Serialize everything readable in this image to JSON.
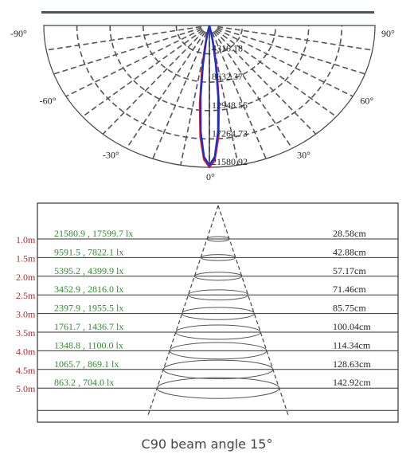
{
  "caption": "C90 beam angle 15°",
  "colors": {
    "curve_c0": "#e0201a",
    "curve_c90": "#1a2ed6",
    "grid": "#555555",
    "illuminance_text": "#2f8a2f",
    "distance_text": "#b03030",
    "diameter_text": "#222222",
    "header_bar": "#4a5560"
  },
  "chart_data": [
    {
      "type": "polar",
      "angle_labels": {
        "left": [
          "-90°",
          "-60°",
          "-30°"
        ],
        "right": [
          "90°",
          "60°",
          "30°"
        ],
        "bottom": "0°"
      },
      "radial_labels": [
        "4316.18",
        "8632.37",
        "12948.55",
        "17264.73",
        "21580.92"
      ],
      "radial_values": [
        4316.18,
        8632.37,
        12948.55,
        17264.73,
        21580.92
      ],
      "rmax": 21580.92,
      "series": [
        {
          "color": "#e0201a",
          "angles": [
            -15,
            -12,
            -10,
            -8,
            -6,
            -4,
            -2,
            0,
            2,
            4,
            6,
            8,
            10,
            12,
            15
          ],
          "values": [
            0,
            1500,
            3500,
            7000,
            12000,
            17000,
            20400,
            21580.92,
            20400,
            17000,
            12000,
            7000,
            3500,
            1500,
            0
          ]
        },
        {
          "color": "#1a2ed6",
          "angles": [
            -15,
            -12,
            -10,
            -8,
            -6,
            -4,
            -2,
            0,
            2,
            4,
            6,
            8,
            10,
            12,
            15
          ],
          "values": [
            0,
            1000,
            2600,
            6000,
            11000,
            16200,
            20000,
            21300,
            20000,
            16200,
            11000,
            6000,
            2600,
            1000,
            0
          ]
        }
      ]
    },
    {
      "type": "table",
      "rows": [
        {
          "distance": "1.0m",
          "illuminance": "21580.9 , 17599.7 lx",
          "diameter": "28.58cm"
        },
        {
          "distance": "1.5m",
          "illuminance": "9591.5 , 7822.1 lx",
          "diameter": "42.88cm"
        },
        {
          "distance": "2.0m",
          "illuminance": "5395.2 , 4399.9 lx",
          "diameter": "57.17cm"
        },
        {
          "distance": "2.5m",
          "illuminance": "3452.9 , 2816.0 lx",
          "diameter": "71.46cm"
        },
        {
          "distance": "3.0m",
          "illuminance": "2397.9 , 1955.5 lx",
          "diameter": "85.75cm"
        },
        {
          "distance": "3.5m",
          "illuminance": "1761.7 , 1436.7 lx",
          "diameter": "100.04cm"
        },
        {
          "distance": "4.0m",
          "illuminance": "1348.8 , 1100.0 lx",
          "diameter": "114.34cm"
        },
        {
          "distance": "4.5m",
          "illuminance": "1065.7 , 869.1 lx",
          "diameter": "128.63cm"
        },
        {
          "distance": "5.0m",
          "illuminance": "863.2 , 704.0 lx",
          "diameter": "142.92cm"
        }
      ]
    }
  ]
}
